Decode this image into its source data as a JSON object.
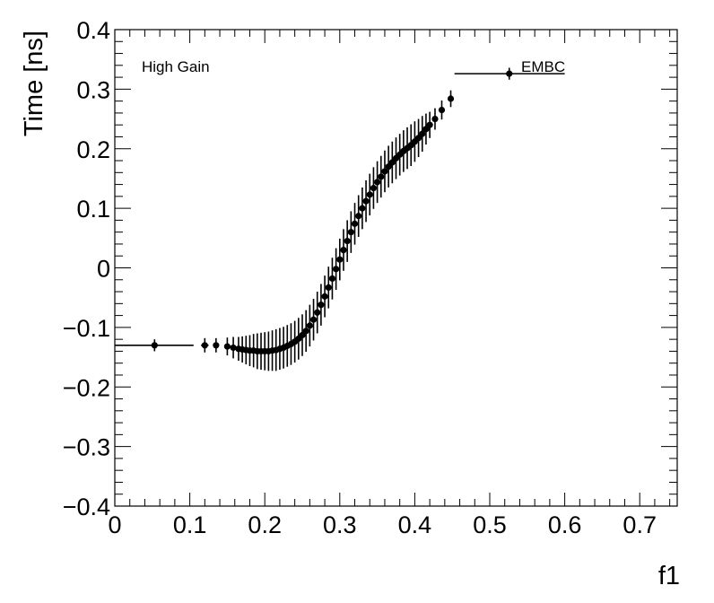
{
  "chart_data": {
    "type": "scatter",
    "xlabel": "f1",
    "ylabel": "Time [ns]",
    "xlim": [
      0,
      0.75
    ],
    "ylim": [
      -0.4,
      0.4
    ],
    "xticks": [
      {
        "value": 0.0,
        "label": "0"
      },
      {
        "value": 0.1,
        "label": "0.1"
      },
      {
        "value": 0.2,
        "label": "0.2"
      },
      {
        "value": 0.3,
        "label": "0.3"
      },
      {
        "value": 0.4,
        "label": "0.4"
      },
      {
        "value": 0.5,
        "label": "0.5"
      },
      {
        "value": 0.6,
        "label": "0.6"
      },
      {
        "value": 0.7,
        "label": "0.7"
      }
    ],
    "yticks": [
      {
        "value": -0.4,
        "label": "−0.4"
      },
      {
        "value": -0.3,
        "label": "−0.3"
      },
      {
        "value": -0.2,
        "label": "−0.2"
      },
      {
        "value": -0.1,
        "label": "−0.1"
      },
      {
        "value": 0.0,
        "label": "0"
      },
      {
        "value": 0.1,
        "label": "0.1"
      },
      {
        "value": 0.2,
        "label": "0.2"
      },
      {
        "value": 0.3,
        "label": "0.3"
      },
      {
        "value": 0.4,
        "label": "0.4"
      }
    ],
    "annotations": {
      "gain": "High Gain",
      "region": "EMBC"
    },
    "grid": false,
    "series": [
      {
        "points": [
          {
            "x": 0.053,
            "y": -0.13,
            "err": 0.01,
            "xlo": 0.0,
            "xhi": 0.105
          },
          {
            "x": 0.12,
            "y": -0.13,
            "err": 0.012,
            "xlo": 0.115,
            "xhi": 0.125
          },
          {
            "x": 0.135,
            "y": -0.13,
            "err": 0.012
          },
          {
            "x": 0.15,
            "y": -0.132,
            "err": 0.015
          },
          {
            "x": 0.158,
            "y": -0.134,
            "err": 0.018
          },
          {
            "x": 0.165,
            "y": -0.136,
            "err": 0.02
          },
          {
            "x": 0.17,
            "y": -0.137,
            "err": 0.022
          },
          {
            "x": 0.175,
            "y": -0.138,
            "err": 0.024
          },
          {
            "x": 0.18,
            "y": -0.139,
            "err": 0.026
          },
          {
            "x": 0.185,
            "y": -0.139,
            "err": 0.028
          },
          {
            "x": 0.19,
            "y": -0.14,
            "err": 0.03
          },
          {
            "x": 0.195,
            "y": -0.14,
            "err": 0.031
          },
          {
            "x": 0.2,
            "y": -0.14,
            "err": 0.032
          },
          {
            "x": 0.205,
            "y": -0.14,
            "err": 0.033
          },
          {
            "x": 0.21,
            "y": -0.139,
            "err": 0.034
          },
          {
            "x": 0.215,
            "y": -0.138,
            "err": 0.035
          },
          {
            "x": 0.22,
            "y": -0.136,
            "err": 0.035
          },
          {
            "x": 0.225,
            "y": -0.134,
            "err": 0.035
          },
          {
            "x": 0.23,
            "y": -0.131,
            "err": 0.035
          },
          {
            "x": 0.235,
            "y": -0.128,
            "err": 0.035
          },
          {
            "x": 0.24,
            "y": -0.124,
            "err": 0.035
          },
          {
            "x": 0.245,
            "y": -0.119,
            "err": 0.035
          },
          {
            "x": 0.25,
            "y": -0.113,
            "err": 0.035
          },
          {
            "x": 0.255,
            "y": -0.106,
            "err": 0.035
          },
          {
            "x": 0.26,
            "y": -0.097,
            "err": 0.035
          },
          {
            "x": 0.265,
            "y": -0.087,
            "err": 0.035
          },
          {
            "x": 0.27,
            "y": -0.075,
            "err": 0.035
          },
          {
            "x": 0.275,
            "y": -0.062,
            "err": 0.035
          },
          {
            "x": 0.28,
            "y": -0.048,
            "err": 0.035
          },
          {
            "x": 0.285,
            "y": -0.033,
            "err": 0.035
          },
          {
            "x": 0.29,
            "y": -0.018,
            "err": 0.035
          },
          {
            "x": 0.295,
            "y": -0.002,
            "err": 0.035
          },
          {
            "x": 0.3,
            "y": 0.014,
            "err": 0.035
          },
          {
            "x": 0.305,
            "y": 0.03,
            "err": 0.035
          },
          {
            "x": 0.31,
            "y": 0.045,
            "err": 0.035
          },
          {
            "x": 0.315,
            "y": 0.06,
            "err": 0.035
          },
          {
            "x": 0.32,
            "y": 0.074,
            "err": 0.035
          },
          {
            "x": 0.325,
            "y": 0.087,
            "err": 0.035
          },
          {
            "x": 0.33,
            "y": 0.1,
            "err": 0.035
          },
          {
            "x": 0.335,
            "y": 0.112,
            "err": 0.035
          },
          {
            "x": 0.34,
            "y": 0.123,
            "err": 0.035
          },
          {
            "x": 0.345,
            "y": 0.134,
            "err": 0.035
          },
          {
            "x": 0.35,
            "y": 0.144,
            "err": 0.035
          },
          {
            "x": 0.355,
            "y": 0.153,
            "err": 0.035
          },
          {
            "x": 0.36,
            "y": 0.162,
            "err": 0.035
          },
          {
            "x": 0.365,
            "y": 0.17,
            "err": 0.035
          },
          {
            "x": 0.37,
            "y": 0.177,
            "err": 0.035
          },
          {
            "x": 0.375,
            "y": 0.184,
            "err": 0.035
          },
          {
            "x": 0.38,
            "y": 0.19,
            "err": 0.035
          },
          {
            "x": 0.385,
            "y": 0.196,
            "err": 0.035
          },
          {
            "x": 0.39,
            "y": 0.201,
            "err": 0.035
          },
          {
            "x": 0.395,
            "y": 0.206,
            "err": 0.035
          },
          {
            "x": 0.4,
            "y": 0.212,
            "err": 0.034
          },
          {
            "x": 0.405,
            "y": 0.218,
            "err": 0.032
          },
          {
            "x": 0.41,
            "y": 0.225,
            "err": 0.03
          },
          {
            "x": 0.415,
            "y": 0.233,
            "err": 0.026
          },
          {
            "x": 0.42,
            "y": 0.24,
            "err": 0.022
          },
          {
            "x": 0.427,
            "y": 0.25,
            "err": 0.018
          },
          {
            "x": 0.436,
            "y": 0.265,
            "err": 0.016
          },
          {
            "x": 0.448,
            "y": 0.284,
            "err": 0.014,
            "xlo": 0.444,
            "xhi": 0.452
          },
          {
            "x": 0.526,
            "y": 0.326,
            "err": 0.01,
            "xlo": 0.453,
            "xhi": 0.6
          }
        ]
      }
    ]
  }
}
